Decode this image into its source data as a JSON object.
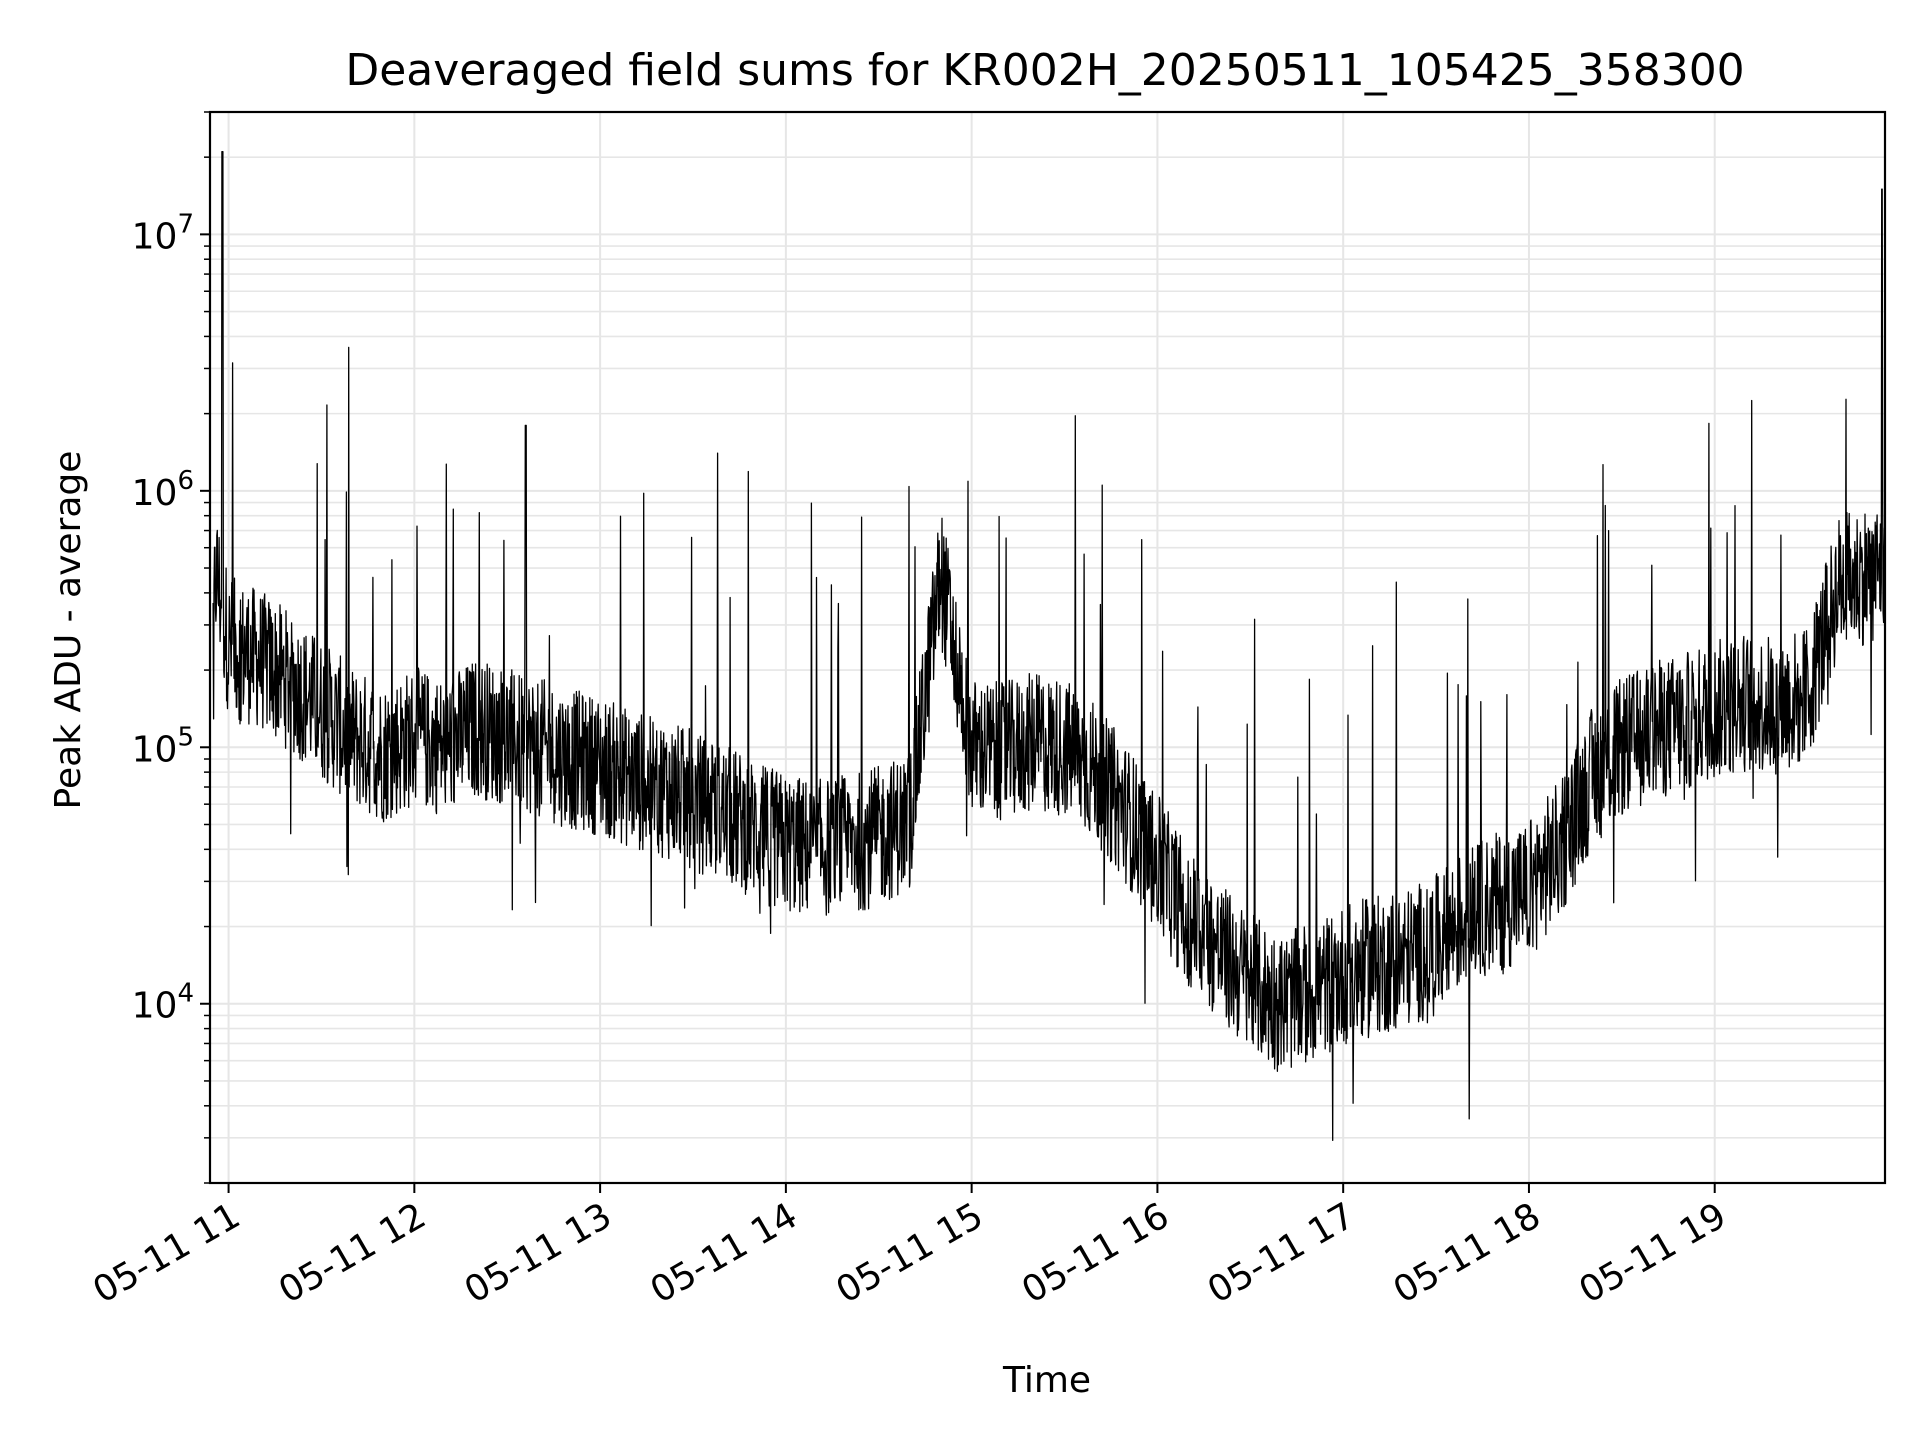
{
  "chart_data": {
    "type": "line",
    "title": "Deaveraged field sums for KR002H_20250511_105425_358300",
    "xlabel": "Time",
    "ylabel": "Peak ADU - average",
    "yscale": "log",
    "ylim": [
      2000,
      30000000
    ],
    "xlim": [
      "2025-05-11T10:54",
      "2025-05-11T19:55"
    ],
    "x_ticks": [
      {
        "value": "2025-05-11T11:00",
        "label": "05-11 11"
      },
      {
        "value": "2025-05-11T12:00",
        "label": "05-11 12"
      },
      {
        "value": "2025-05-11T13:00",
        "label": "05-11 13"
      },
      {
        "value": "2025-05-11T14:00",
        "label": "05-11 14"
      },
      {
        "value": "2025-05-11T15:00",
        "label": "05-11 15"
      },
      {
        "value": "2025-05-11T16:00",
        "label": "05-11 16"
      },
      {
        "value": "2025-05-11T17:00",
        "label": "05-11 17"
      },
      {
        "value": "2025-05-11T18:00",
        "label": "05-11 18"
      },
      {
        "value": "2025-05-11T19:00",
        "label": "05-11 19"
      }
    ],
    "y_ticks": [
      {
        "value": 10000,
        "base": "10",
        "exp": "4"
      },
      {
        "value": 100000,
        "base": "10",
        "exp": "5"
      },
      {
        "value": 1000000,
        "base": "10",
        "exp": "6"
      },
      {
        "value": 10000000,
        "base": "10",
        "exp": "7"
      }
    ],
    "grid": true,
    "line_color": "#000000",
    "grid_color": "#e6e6e6",
    "series": [
      {
        "points": [
          [
            "2025-05-11T10:55",
            300000
          ],
          [
            "2025-05-11T10:56",
            480000
          ],
          [
            "2025-05-11T10:58",
            21000000
          ],
          [
            "2025-05-11T11:00",
            250000
          ],
          [
            "2025-05-11T11:10",
            220000
          ],
          [
            "2025-05-11T11:20",
            180000
          ],
          [
            "2025-05-11T11:30",
            140000
          ],
          [
            "2025-05-11T11:40",
            110000
          ],
          [
            "2025-05-11T11:50",
            95000
          ],
          [
            "2025-05-11T12:00",
            110000
          ],
          [
            "2025-05-11T12:10",
            100000
          ],
          [
            "2025-05-11T12:20",
            120000
          ],
          [
            "2025-05-11T12:30",
            110000
          ],
          [
            "2025-05-11T12:36",
            1800000
          ],
          [
            "2025-05-11T12:40",
            100000
          ],
          [
            "2025-05-11T12:50",
            90000
          ],
          [
            "2025-05-11T13:00",
            85000
          ],
          [
            "2025-05-11T13:10",
            75000
          ],
          [
            "2025-05-11T13:20",
            70000
          ],
          [
            "2025-05-11T13:30",
            62000
          ],
          [
            "2025-05-11T13:40",
            55000
          ],
          [
            "2025-05-11T13:50",
            48000
          ],
          [
            "2025-05-11T14:00",
            42000
          ],
          [
            "2025-05-11T14:10",
            40000
          ],
          [
            "2025-05-11T14:20",
            42000
          ],
          [
            "2025-05-11T14:30",
            45000
          ],
          [
            "2025-05-11T14:40",
            52000
          ],
          [
            "2025-05-11T14:50",
            480000
          ],
          [
            "2025-05-11T15:00",
            100000
          ],
          [
            "2025-05-11T15:10",
            95000
          ],
          [
            "2025-05-11T15:20",
            105000
          ],
          [
            "2025-05-11T15:30",
            100000
          ],
          [
            "2025-05-11T15:40",
            80000
          ],
          [
            "2025-05-11T15:50",
            55000
          ],
          [
            "2025-05-11T16:00",
            35000
          ],
          [
            "2025-05-11T16:10",
            22000
          ],
          [
            "2025-05-11T16:20",
            16000
          ],
          [
            "2025-05-11T16:30",
            12000
          ],
          [
            "2025-05-11T16:40",
            10000
          ],
          [
            "2025-05-11T16:50",
            11000
          ],
          [
            "2025-05-11T17:00",
            13000
          ],
          [
            "2025-05-11T17:10",
            14000
          ],
          [
            "2025-05-11T17:20",
            15000
          ],
          [
            "2025-05-11T17:30",
            17000
          ],
          [
            "2025-05-11T17:40",
            22000
          ],
          [
            "2025-05-11T17:50",
            25000
          ],
          [
            "2025-05-11T18:00",
            28000
          ],
          [
            "2025-05-11T18:10",
            40000
          ],
          [
            "2025-05-11T18:20",
            75000
          ],
          [
            "2025-05-11T18:30",
            100000
          ],
          [
            "2025-05-11T18:40",
            115000
          ],
          [
            "2025-05-11T18:50",
            125000
          ],
          [
            "2025-05-11T19:00",
            140000
          ],
          [
            "2025-05-11T19:10",
            150000
          ],
          [
            "2025-05-11T19:20",
            145000
          ],
          [
            "2025-05-11T19:30",
            160000
          ],
          [
            "2025-05-11T19:40",
            430000
          ],
          [
            "2025-05-11T19:50",
            480000
          ],
          [
            "2025-05-11T19:54",
            15000000
          ],
          [
            "2025-05-11T19:55",
            500000
          ]
        ]
      }
    ]
  }
}
